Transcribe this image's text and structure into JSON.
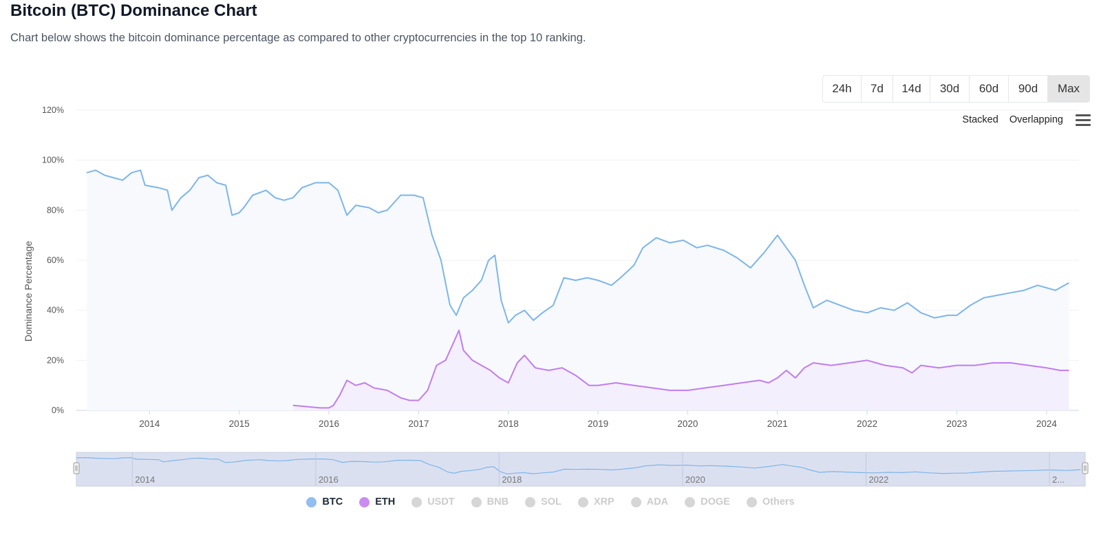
{
  "header": {
    "title": "Bitcoin (BTC) Dominance Chart",
    "subtitle": "Chart below shows the bitcoin dominance percentage as compared to other cryptocurrencies in the top 10 ranking."
  },
  "range_buttons": [
    {
      "label": "24h",
      "active": false
    },
    {
      "label": "7d",
      "active": false
    },
    {
      "label": "14d",
      "active": false
    },
    {
      "label": "30d",
      "active": false
    },
    {
      "label": "60d",
      "active": false
    },
    {
      "label": "90d",
      "active": false
    },
    {
      "label": "Max",
      "active": true
    }
  ],
  "modes": {
    "stacked": "Stacked",
    "overlapping": "Overlapping",
    "menu_icon": "hamburger-menu-icon"
  },
  "colors": {
    "btc": "#7cb5ec",
    "eth": "#c17cf0",
    "navigator_mask": "#dbe0f0",
    "area_fill": "#f7f9fd"
  },
  "legend": [
    {
      "label": "BTC",
      "color": "#90bff0",
      "active": true
    },
    {
      "label": "ETH",
      "color": "#c98bf0",
      "active": true
    },
    {
      "label": "USDT",
      "color": "#d6d6d6",
      "active": false
    },
    {
      "label": "BNB",
      "color": "#d6d6d6",
      "active": false
    },
    {
      "label": "SOL",
      "color": "#d6d6d6",
      "active": false
    },
    {
      "label": "XRP",
      "color": "#d6d6d6",
      "active": false
    },
    {
      "label": "ADA",
      "color": "#d6d6d6",
      "active": false
    },
    {
      "label": "DOGE",
      "color": "#d6d6d6",
      "active": false
    },
    {
      "label": "Others",
      "color": "#d6d6d6",
      "active": false
    }
  ],
  "navigator": {
    "labels": [
      "2014",
      "2016",
      "2018",
      "2020",
      "2022",
      "2..."
    ]
  },
  "chart_data": {
    "type": "area",
    "ylabel": "Dominance Percentage",
    "ylim": [
      0,
      120
    ],
    "yticks": [
      0,
      20,
      40,
      60,
      80,
      100,
      120
    ],
    "ytick_labels": [
      "0%",
      "20%",
      "40%",
      "60%",
      "80%",
      "100%",
      "120%"
    ],
    "xlim": [
      2013.3,
      2024.3
    ],
    "xticks": [
      2014,
      2015,
      2016,
      2017,
      2018,
      2019,
      2020,
      2021,
      2022,
      2023,
      2024
    ],
    "xtick_labels": [
      "2014",
      "2015",
      "2016",
      "2017",
      "2018",
      "2019",
      "2020",
      "2021",
      "2022",
      "2023",
      "2024"
    ],
    "grid": true,
    "legend_position": "bottom",
    "series": [
      {
        "name": "BTC",
        "points": [
          [
            2013.3,
            95
          ],
          [
            2013.4,
            96
          ],
          [
            2013.5,
            94
          ],
          [
            2013.6,
            93
          ],
          [
            2013.7,
            92
          ],
          [
            2013.8,
            95
          ],
          [
            2013.9,
            96
          ],
          [
            2013.95,
            90
          ],
          [
            2014.1,
            89
          ],
          [
            2014.2,
            88
          ],
          [
            2014.25,
            80
          ],
          [
            2014.35,
            85
          ],
          [
            2014.45,
            88
          ],
          [
            2014.55,
            93
          ],
          [
            2014.65,
            94
          ],
          [
            2014.75,
            91
          ],
          [
            2014.85,
            90
          ],
          [
            2014.92,
            78
          ],
          [
            2015.0,
            79
          ],
          [
            2015.05,
            81
          ],
          [
            2015.15,
            86
          ],
          [
            2015.3,
            88
          ],
          [
            2015.4,
            85
          ],
          [
            2015.5,
            84
          ],
          [
            2015.6,
            85
          ],
          [
            2015.7,
            89
          ],
          [
            2015.85,
            91
          ],
          [
            2016.0,
            91
          ],
          [
            2016.1,
            88
          ],
          [
            2016.2,
            78
          ],
          [
            2016.3,
            82
          ],
          [
            2016.45,
            81
          ],
          [
            2016.55,
            79
          ],
          [
            2016.65,
            80
          ],
          [
            2016.8,
            86
          ],
          [
            2016.95,
            86
          ],
          [
            2017.05,
            85
          ],
          [
            2017.15,
            70
          ],
          [
            2017.25,
            60
          ],
          [
            2017.35,
            42
          ],
          [
            2017.42,
            38
          ],
          [
            2017.5,
            45
          ],
          [
            2017.6,
            48
          ],
          [
            2017.7,
            52
          ],
          [
            2017.78,
            60
          ],
          [
            2017.85,
            62
          ],
          [
            2017.92,
            44
          ],
          [
            2018.0,
            35
          ],
          [
            2018.08,
            38
          ],
          [
            2018.18,
            40
          ],
          [
            2018.28,
            36
          ],
          [
            2018.38,
            39
          ],
          [
            2018.5,
            42
          ],
          [
            2018.62,
            53
          ],
          [
            2018.75,
            52
          ],
          [
            2018.88,
            53
          ],
          [
            2019.0,
            52
          ],
          [
            2019.15,
            50
          ],
          [
            2019.25,
            53
          ],
          [
            2019.4,
            58
          ],
          [
            2019.5,
            65
          ],
          [
            2019.65,
            69
          ],
          [
            2019.8,
            67
          ],
          [
            2019.95,
            68
          ],
          [
            2020.1,
            65
          ],
          [
            2020.22,
            66
          ],
          [
            2020.4,
            64
          ],
          [
            2020.55,
            61
          ],
          [
            2020.7,
            57
          ],
          [
            2020.85,
            63
          ],
          [
            2021.0,
            70
          ],
          [
            2021.1,
            65
          ],
          [
            2021.2,
            60
          ],
          [
            2021.3,
            50
          ],
          [
            2021.4,
            41
          ],
          [
            2021.55,
            44
          ],
          [
            2021.7,
            42
          ],
          [
            2021.85,
            40
          ],
          [
            2022.0,
            39
          ],
          [
            2022.15,
            41
          ],
          [
            2022.3,
            40
          ],
          [
            2022.45,
            43
          ],
          [
            2022.6,
            39
          ],
          [
            2022.75,
            37
          ],
          [
            2022.9,
            38
          ],
          [
            2023.0,
            38
          ],
          [
            2023.15,
            42
          ],
          [
            2023.3,
            45
          ],
          [
            2023.45,
            46
          ],
          [
            2023.6,
            47
          ],
          [
            2023.75,
            48
          ],
          [
            2023.9,
            50
          ],
          [
            2024.0,
            49
          ],
          [
            2024.1,
            48
          ],
          [
            2024.2,
            50
          ],
          [
            2024.25,
            51
          ]
        ]
      },
      {
        "name": "ETH",
        "points": [
          [
            2015.6,
            2
          ],
          [
            2015.75,
            1.5
          ],
          [
            2015.9,
            1
          ],
          [
            2016.0,
            1
          ],
          [
            2016.05,
            2
          ],
          [
            2016.12,
            6
          ],
          [
            2016.2,
            12
          ],
          [
            2016.3,
            10
          ],
          [
            2016.4,
            11
          ],
          [
            2016.5,
            9
          ],
          [
            2016.65,
            8
          ],
          [
            2016.8,
            5
          ],
          [
            2016.9,
            4
          ],
          [
            2017.0,
            4
          ],
          [
            2017.1,
            8
          ],
          [
            2017.2,
            18
          ],
          [
            2017.3,
            20
          ],
          [
            2017.4,
            28
          ],
          [
            2017.45,
            32
          ],
          [
            2017.5,
            24
          ],
          [
            2017.6,
            20
          ],
          [
            2017.7,
            18
          ],
          [
            2017.8,
            16
          ],
          [
            2017.9,
            13
          ],
          [
            2018.0,
            11
          ],
          [
            2018.1,
            19
          ],
          [
            2018.18,
            22
          ],
          [
            2018.3,
            17
          ],
          [
            2018.45,
            16
          ],
          [
            2018.6,
            17
          ],
          [
            2018.75,
            14
          ],
          [
            2018.9,
            10
          ],
          [
            2019.0,
            10
          ],
          [
            2019.2,
            11
          ],
          [
            2019.4,
            10
          ],
          [
            2019.6,
            9
          ],
          [
            2019.8,
            8
          ],
          [
            2020.0,
            8
          ],
          [
            2020.2,
            9
          ],
          [
            2020.4,
            10
          ],
          [
            2020.6,
            11
          ],
          [
            2020.8,
            12
          ],
          [
            2020.9,
            11
          ],
          [
            2021.0,
            13
          ],
          [
            2021.1,
            16
          ],
          [
            2021.2,
            13
          ],
          [
            2021.3,
            17
          ],
          [
            2021.4,
            19
          ],
          [
            2021.6,
            18
          ],
          [
            2021.8,
            19
          ],
          [
            2022.0,
            20
          ],
          [
            2022.2,
            18
          ],
          [
            2022.4,
            17
          ],
          [
            2022.5,
            15
          ],
          [
            2022.6,
            18
          ],
          [
            2022.8,
            17
          ],
          [
            2023.0,
            18
          ],
          [
            2023.2,
            18
          ],
          [
            2023.4,
            19
          ],
          [
            2023.6,
            19
          ],
          [
            2023.8,
            18
          ],
          [
            2024.0,
            17
          ],
          [
            2024.15,
            16
          ],
          [
            2024.25,
            16
          ]
        ]
      }
    ]
  }
}
